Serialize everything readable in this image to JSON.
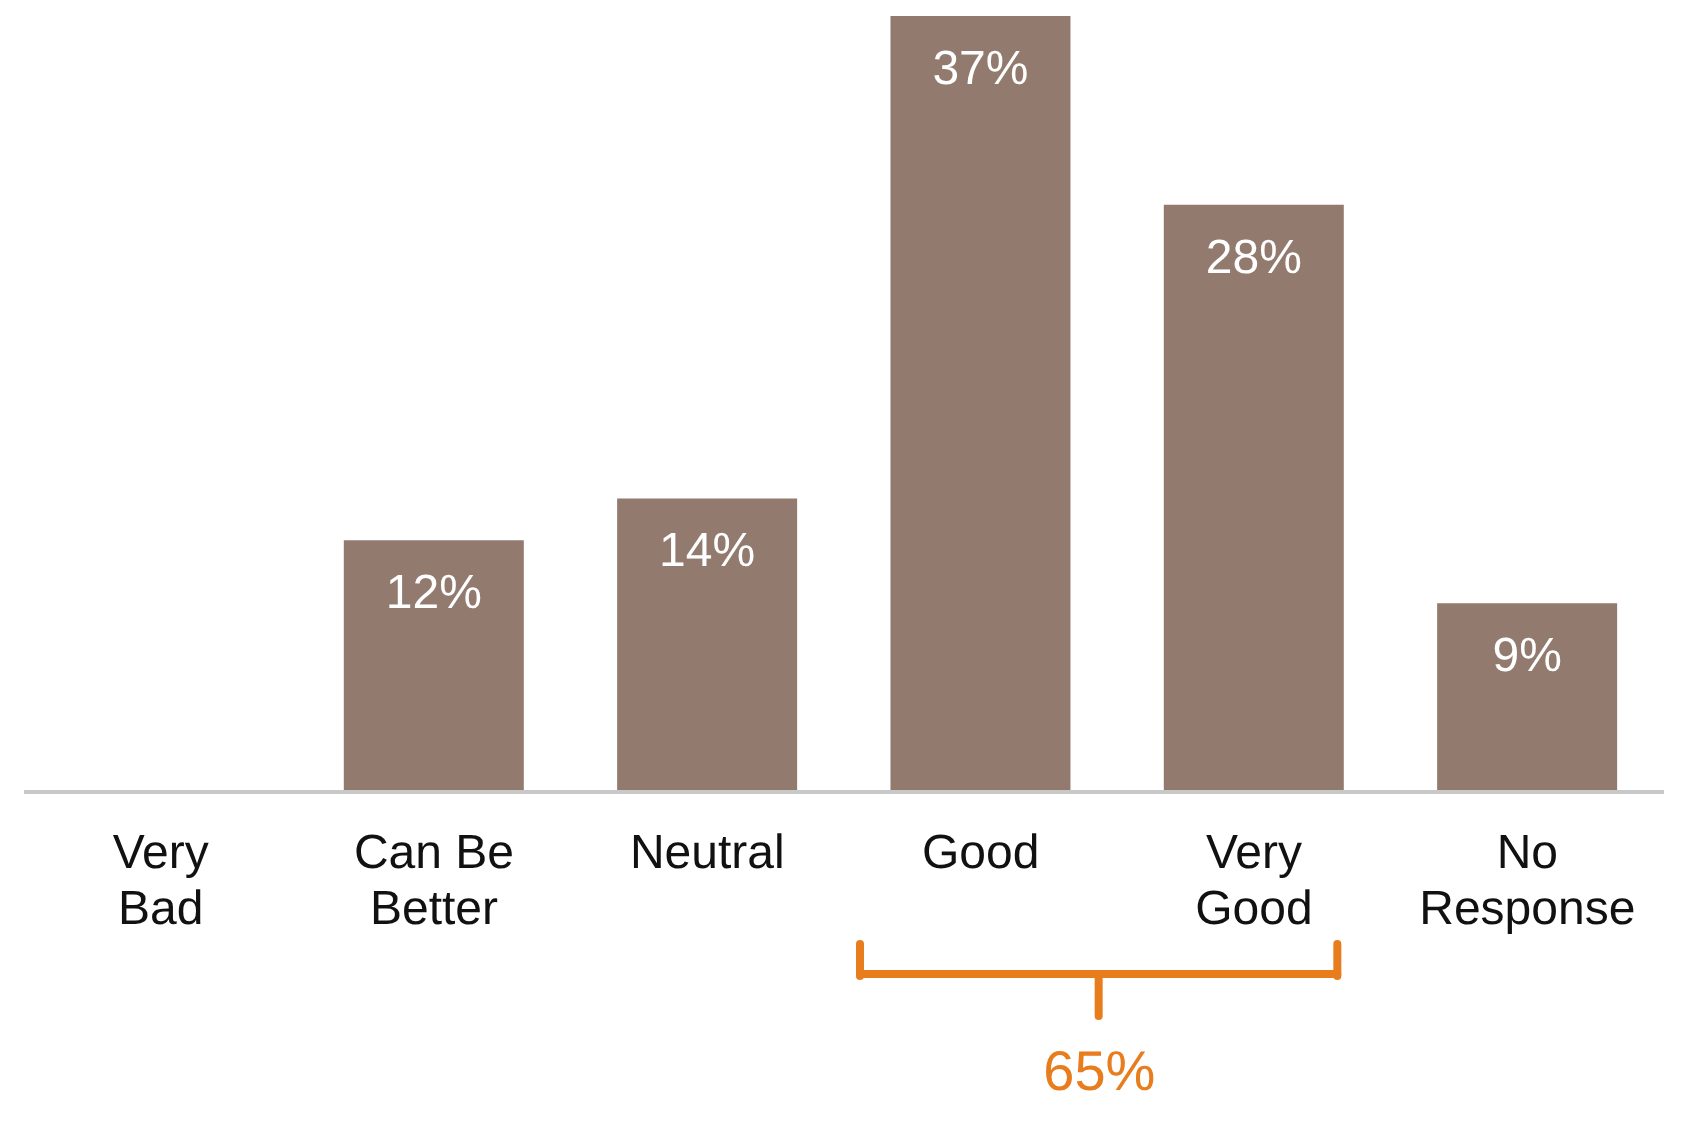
{
  "chart_data": {
    "type": "bar",
    "categories": [
      "Very Bad",
      "Can Be Better",
      "Neutral",
      "Good",
      "Very Good",
      "No Response"
    ],
    "values": [
      0,
      12,
      14,
      37,
      28,
      9
    ],
    "value_labels": [
      null,
      "12%",
      "14%",
      "37%",
      "28%",
      "9%"
    ],
    "color": "#927a6e",
    "annotations": [
      "65%"
    ]
  }
}
